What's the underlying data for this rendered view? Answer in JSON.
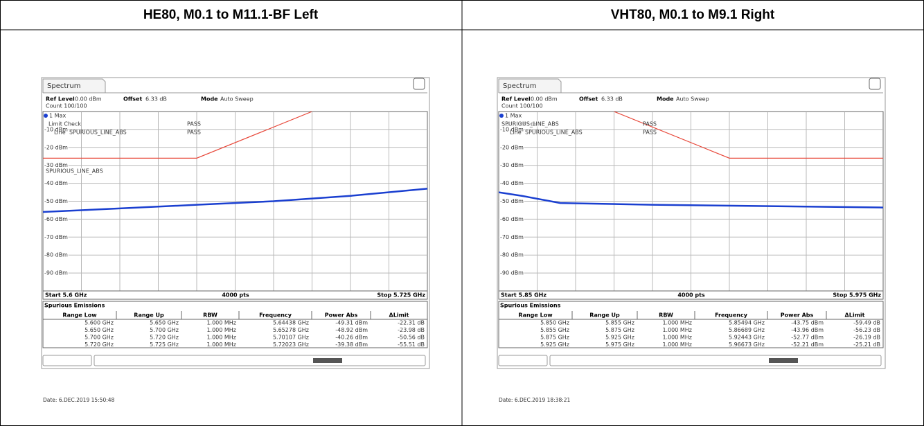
{
  "header": [
    "HE80,  M0.1 to M11.1-BF Left",
    "VHT80,  M0.1 to M9.1 Right"
  ],
  "panels": [
    {
      "tab": "Spectrum",
      "ref_level_label": "Ref Level",
      "ref_level": "0.00 dBm",
      "offset_label": "Offset",
      "offset": "6.33 dB",
      "mode_label": "Mode",
      "mode": "Auto Sweep",
      "count": "Count 100/100",
      "trace_label": "1 Max",
      "limit_check": "Limit Check",
      "limit_check_result": "PASS",
      "line_label": "Line",
      "line_name": "SPURIOUS_LINE_ABS",
      "line_result": "PASS",
      "limit_tag": "SPURIOUS_LINE_ABS",
      "y_labels": [
        "-10 dBm",
        "-20 dBm",
        "-30 dBm",
        "-40 dBm",
        "-50 dBm",
        "-60 dBm",
        "-70 dBm",
        "-80 dBm",
        "-90 dBm"
      ],
      "start": "Start 5.6 GHz",
      "points": "4000 pts",
      "stop": "Stop 5.725 GHz",
      "table_title": "Spurious Emissions",
      "columns": [
        "Range Low",
        "Range Up",
        "RBW",
        "Frequency",
        "Power Abs",
        "ΔLimit"
      ],
      "rows": [
        [
          "5.600 GHz",
          "5.650 GHz",
          "1.000 MHz",
          "5.64438 GHz",
          "-49.31 dBm",
          "-22.31 dB"
        ],
        [
          "5.650 GHz",
          "5.700 GHz",
          "1.000 MHz",
          "5.65278 GHz",
          "-48.92 dBm",
          "-23.98 dB"
        ],
        [
          "5.700 GHz",
          "5.720 GHz",
          "1.000 MHz",
          "5.70107 GHz",
          "-40.26 dBm",
          "-50.56 dB"
        ],
        [
          "5.720 GHz",
          "5.725 GHz",
          "1.000 MHz",
          "5.72023 GHz",
          "-39.38 dBm",
          "-55.51 dB"
        ]
      ],
      "date": "Date: 6.DEC.2019  15:50:48",
      "plot": {
        "xlim": [
          5.6,
          5.725
        ],
        "ylim": [
          -100,
          0
        ],
        "limit": {
          "x": [
            5.6,
            5.65,
            5.6875
          ],
          "y": [
            -26,
            -26,
            0
          ]
        },
        "trace": {
          "x": [
            5.6,
            5.625,
            5.65,
            5.675,
            5.7,
            5.725
          ],
          "y": [
            -56,
            -54,
            -52,
            -50,
            -47,
            -43
          ]
        }
      }
    },
    {
      "tab": "Spectrum",
      "ref_level_label": "Ref Level",
      "ref_level": "0.00 dBm",
      "offset_label": "Offset",
      "offset": "6.33 dB",
      "mode_label": "Mode",
      "mode": "Auto Sweep",
      "count": "Count 100/100",
      "trace_label": "1 Max",
      "limit_check": "Limit Check",
      "limit_check_result": "PASS",
      "line_label": "Line",
      "line_name": "SPURIOUS_LINE_ABS",
      "line_result": "PASS",
      "limit_tag": "SPURIOUS_LINE_ABS",
      "y_labels": [
        "-10 dBm",
        "-20 dBm",
        "-30 dBm",
        "-40 dBm",
        "-50 dBm",
        "-60 dBm",
        "-70 dBm",
        "-80 dBm",
        "-90 dBm"
      ],
      "start": "Start 5.85 GHz",
      "points": "4000 pts",
      "stop": "Stop 5.975 GHz",
      "table_title": "Spurious Emissions",
      "columns": [
        "Range Low",
        "Range Up",
        "RBW",
        "Frequency",
        "Power Abs",
        "ΔLimit"
      ],
      "rows": [
        [
          "5.850 GHz",
          "5.855 GHz",
          "1.000 MHz",
          "5.85494 GHz",
          "-43.75 dBm",
          "-59.49 dB"
        ],
        [
          "5.855 GHz",
          "5.875 GHz",
          "1.000 MHz",
          "5.86689 GHz",
          "-43.96 dBm",
          "-56.23 dB"
        ],
        [
          "5.875 GHz",
          "5.925 GHz",
          "1.000 MHz",
          "5.92443 GHz",
          "-52.77 dBm",
          "-26.19 dB"
        ],
        [
          "5.925 GHz",
          "5.975 GHz",
          "1.000 MHz",
          "5.96673 GHz",
          "-52.21 dBm",
          "-25.21 dB"
        ]
      ],
      "date": "Date: 6.DEC.2019  18:38:21",
      "plot": {
        "xlim": [
          5.85,
          5.975
        ],
        "ylim": [
          -100,
          0
        ],
        "limit": {
          "x": [
            5.8875,
            5.925,
            5.975
          ],
          "y": [
            0,
            -26,
            -26
          ]
        },
        "trace": {
          "x": [
            5.85,
            5.8575,
            5.87,
            5.9,
            5.95,
            5.975
          ],
          "y": [
            -45,
            -47,
            -51,
            -52,
            -53,
            -53.5
          ]
        }
      }
    }
  ]
}
